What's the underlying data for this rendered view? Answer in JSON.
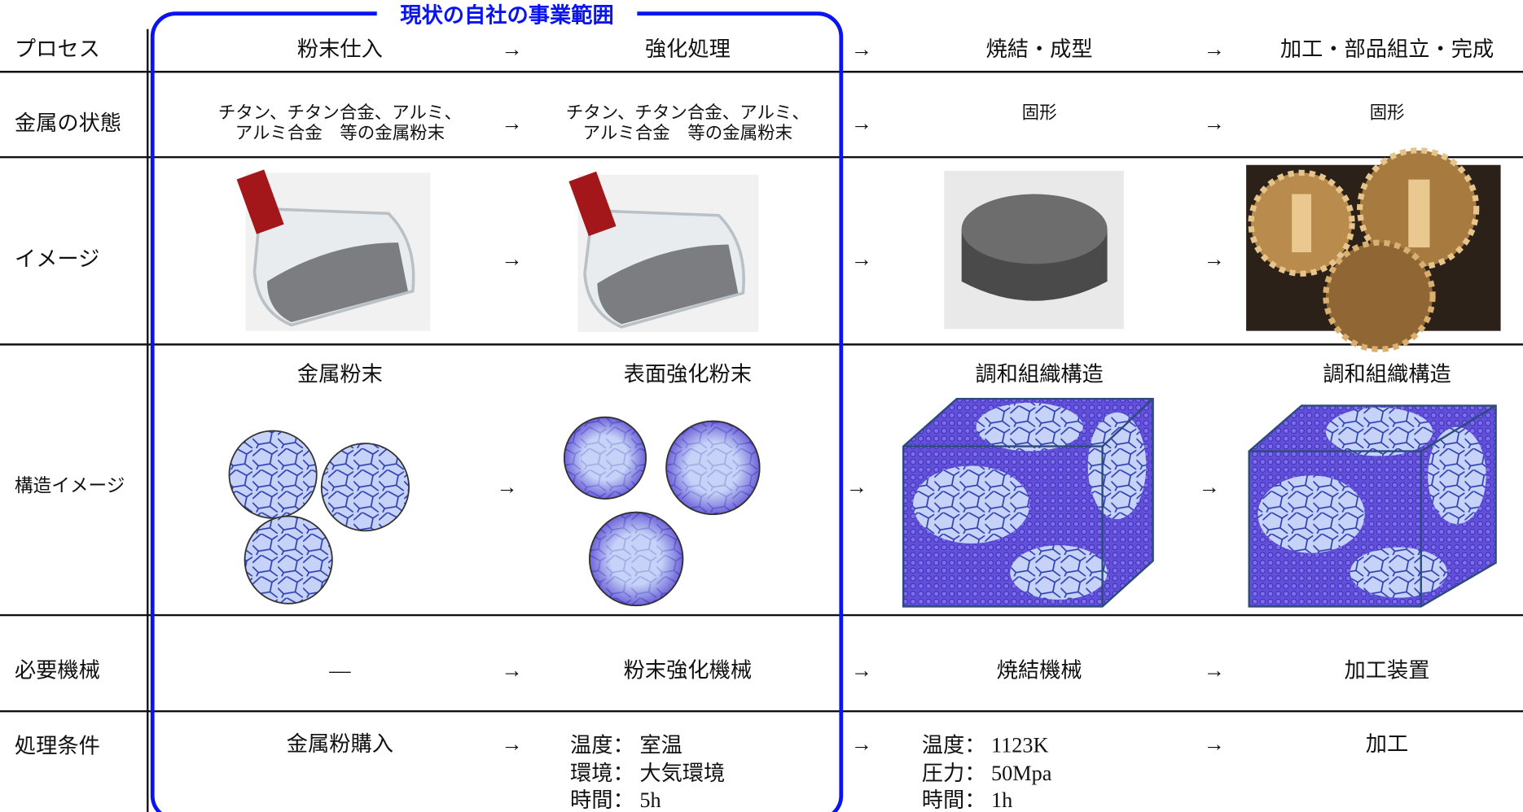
{
  "scope_label": "現状の自社の事業範囲",
  "rows": [
    {
      "label": "プロセス",
      "cells": [
        "粉末仕入",
        "強化処理",
        "焼結・成型",
        "加工・部品組立・完成"
      ],
      "arrows": [
        "→",
        "→",
        "→"
      ]
    },
    {
      "label": "金属の状態",
      "cells": [
        "チタン、チタン合金、アルミ、\nアルミ合金　等の金属粉末",
        "チタン、チタン合金、アルミ、\nアルミ合金　等の金属粉末",
        "固形",
        "固形"
      ],
      "arrows": [
        "→",
        "→",
        "→"
      ]
    },
    {
      "label": "イメージ",
      "arrows": [
        "→",
        "→",
        "→"
      ]
    },
    {
      "label": "構造イメージ",
      "cells": [
        "金属粉末",
        "表面強化粉末",
        "調和組織構造",
        "調和組織構造"
      ],
      "arrows": [
        "→",
        "→",
        "→"
      ]
    },
    {
      "label": "必要機械",
      "cells": [
        "—",
        "粉末強化機械",
        "焼結機械",
        "加工装置"
      ],
      "arrows": [
        "→",
        "→",
        "→"
      ]
    },
    {
      "label": "処理条件",
      "cells": [
        "金属粉購入",
        "温度：  室温\n環境：  大気環境\n時間：  5h",
        "温度：  1123K\n圧力：  50Mpa\n時間：  1h",
        "加工"
      ],
      "arrows": [
        "→",
        "→",
        "→"
      ]
    }
  ]
}
